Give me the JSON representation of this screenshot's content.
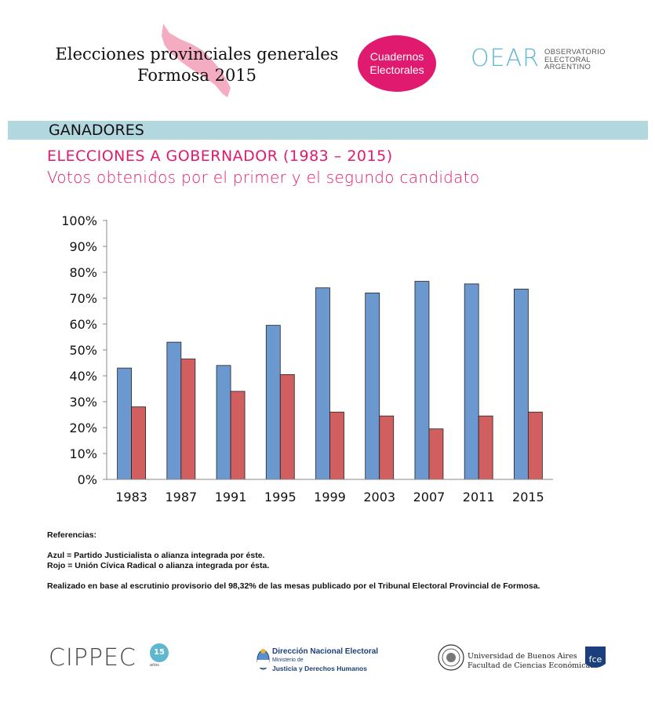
{
  "header": {
    "title_line1": "Elecciones provinciales generales",
    "title_line2": "Formosa 2015",
    "badge_line1": "Cuadernos",
    "badge_line2": "Electorales",
    "oear_logo": "OEAR",
    "oear_line1": "OBSERVATORIO",
    "oear_line2": "ELECTORAL",
    "oear_line3": "ARGENTINO"
  },
  "section": {
    "band": "GANADORES",
    "heading": "ELECCIONES A GOBERNADOR (1983 – 2015)",
    "subheading": "Votos obtenidos por el primer y el segundo candidato"
  },
  "colors": {
    "accent": "#e01a6e",
    "band": "#b3d7df",
    "blue": "#6a98cf",
    "red": "#d25f5f",
    "oear": "#5fb7cf"
  },
  "chart_data": {
    "type": "bar",
    "title": "",
    "xlabel": "",
    "ylabel": "",
    "categories": [
      "1983",
      "1987",
      "1991",
      "1995",
      "1999",
      "2003",
      "2007",
      "2011",
      "2015"
    ],
    "series": [
      {
        "name": "Partido Justicialista o alianza integrada por éste",
        "color": "#6a98cf",
        "values": [
          43,
          53,
          44,
          59.5,
          74,
          72,
          76.5,
          75.5,
          73.5
        ]
      },
      {
        "name": "Unión Cívica Radical o alianza integrada por ésta",
        "color": "#d25f5f",
        "values": [
          28,
          46.5,
          34,
          40.5,
          26,
          24.5,
          19.5,
          24.5,
          26
        ]
      }
    ],
    "ylim": [
      0,
      100
    ],
    "yticks": [
      "0%",
      "10%",
      "20%",
      "30%",
      "40%",
      "50%",
      "60%",
      "70%",
      "80%",
      "90%",
      "100%"
    ],
    "grid": false,
    "legend": "none"
  },
  "notes": {
    "label": "Referencias:",
    "blue": "Azul = Partido Justicialista o alianza integrada por éste.",
    "red": "Rojo = Unión Cívica Radical o alianza integrada por ésta.",
    "source": "Realizado en base al escrutinio provisorio del 98,32% de las mesas publicado por el Tribunal Electoral Provincial de Formosa."
  },
  "footer": {
    "cippec": "CIPPEC",
    "cippec_badge": "15",
    "cippec_badge_sub": "años",
    "dne_line1": "Dirección Nacional Electoral",
    "dne_line2": "Ministerio de",
    "dne_line3": "Justicia y Derechos Humanos",
    "uba_line1": "Universidad de Buenos Aires",
    "uba_line2": "Facultad de Ciencias Económicas",
    "fce": "fce"
  }
}
